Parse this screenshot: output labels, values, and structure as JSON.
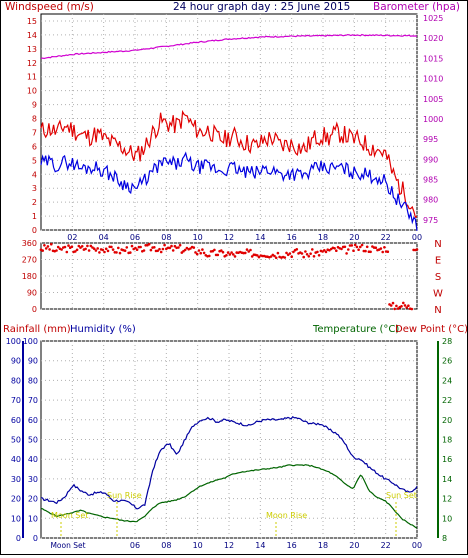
{
  "header": {
    "left_label": "Windspeed (m/s)",
    "title": "24 hour graph day : 25 June 2015",
    "right_label": "Barometer (hpa)"
  },
  "colors": {
    "wind_gust": "#e00000",
    "wind_avg": "#0000e0",
    "barometer": "#d000d0",
    "direction": "#e00000",
    "humidity": "#0000a0",
    "temperature": "#006400",
    "rainfall": "#0000c0",
    "sun": "#cccc00",
    "grid": "#b0b0b0"
  },
  "chart_data": [
    {
      "type": "line",
      "name": "wind_and_barometer",
      "x_ticks": [
        "02",
        "04",
        "06",
        "08",
        "10",
        "12",
        "14",
        "16",
        "18",
        "20",
        "22",
        "00"
      ],
      "left_ticks": [
        "0",
        "1",
        "2",
        "3",
        "4",
        "5",
        "6",
        "7",
        "8",
        "9",
        "10",
        "11",
        "12",
        "13",
        "14",
        "15"
      ],
      "right_ticks": [
        "975",
        "980",
        "985",
        "990",
        "995",
        "1000",
        "1005",
        "1010",
        "1015",
        "1020",
        "1025"
      ],
      "ylim_left": [
        0,
        15.5
      ],
      "ylim_right": [
        972.5,
        1026
      ],
      "series": [
        {
          "key": "gust",
          "values": [
            7.1,
            7.3,
            7.0,
            7.5,
            7.2,
            6.8,
            6.7,
            6.9,
            6.5,
            6.2,
            6.0,
            5.6,
            5.3,
            6.0,
            7.0,
            7.8,
            7.6,
            7.5,
            8.2,
            7.4,
            7.0,
            7.2,
            6.6,
            6.5,
            6.8,
            6.4,
            6.2,
            6.0,
            6.5,
            6.6,
            6.0,
            6.2,
            6.0,
            5.8,
            6.5,
            6.8,
            6.6,
            7.0,
            6.8,
            6.5,
            6.4,
            6.0,
            5.8,
            5.5,
            4.0,
            3.0,
            2.2,
            1.0
          ]
        },
        {
          "key": "avg",
          "values": [
            4.8,
            4.9,
            4.6,
            4.9,
            4.8,
            4.4,
            4.5,
            4.5,
            4.2,
            3.9,
            3.4,
            3.2,
            3.0,
            3.6,
            4.2,
            4.8,
            4.8,
            4.7,
            5.1,
            4.6,
            4.5,
            4.6,
            4.3,
            4.3,
            4.5,
            4.2,
            4.1,
            4.1,
            4.4,
            4.3,
            4.0,
            4.1,
            4.0,
            3.9,
            4.3,
            4.5,
            4.4,
            4.5,
            4.4,
            4.1,
            4.1,
            3.9,
            3.8,
            3.5,
            2.6,
            1.9,
            1.2,
            0.4
          ]
        },
        {
          "key": "barometer",
          "values": [
            1015,
            1016,
            1016.5,
            1017,
            1018,
            1019,
            1019.8,
            1020.3,
            1020.5,
            1020.6,
            1020.8,
            1020.7,
            1020.6
          ]
        }
      ]
    },
    {
      "type": "scatter",
      "name": "wind_direction",
      "left_ticks": [
        "0",
        "90",
        "180",
        "270",
        "360"
      ],
      "right_labels": [
        "N",
        "W",
        "S",
        "E",
        "N"
      ],
      "ylim": [
        0,
        360
      ],
      "series": [
        {
          "key": "direction",
          "values": [
            330,
            335,
            320,
            330,
            325,
            330,
            335,
            328,
            330,
            322,
            318,
            325,
            320,
            330,
            335,
            330,
            328,
            330,
            325,
            322,
            315,
            300,
            305,
            302,
            298,
            300,
            305,
            300,
            302,
            298,
            300,
            305,
            310,
            300,
            305,
            308,
            320,
            325,
            322,
            330,
            335,
            330,
            325,
            330,
            15,
            20,
            10,
            340
          ]
        }
      ]
    },
    {
      "type": "line",
      "name": "rain_humidity_temperature",
      "headers": {
        "rainfall": "Rainfall (mm)",
        "humidity": "Humidity (%)",
        "temperature": "Temperature (°C)",
        "dewpoint": "Dew Point (°C)"
      },
      "left_ticks": [
        "0",
        "10",
        "20",
        "30",
        "40",
        "50",
        "60",
        "70",
        "80",
        "90",
        "100"
      ],
      "right_ticks": [
        "8",
        "10",
        "12",
        "14",
        "16",
        "18",
        "20",
        "22",
        "24",
        "26",
        "28"
      ],
      "ylim_left": [
        0,
        100
      ],
      "ylim_right": [
        8,
        28
      ],
      "series": [
        {
          "key": "humidity",
          "values": [
            20,
            19,
            18,
            21,
            27,
            24,
            22,
            23,
            23,
            19,
            19,
            18,
            15,
            17,
            35,
            45,
            48,
            42,
            50,
            57,
            60,
            61,
            59,
            60,
            59,
            58,
            57,
            59,
            60,
            60,
            60,
            61,
            61,
            59,
            58,
            58,
            55,
            53,
            48,
            41,
            40,
            36,
            33,
            30,
            28,
            25,
            23,
            26
          ]
        },
        {
          "key": "temperature",
          "values": [
            11.0,
            10.6,
            10.2,
            10.4,
            10.6,
            10.8,
            10.5,
            10.3,
            10.1,
            10.0,
            9.8,
            9.7,
            9.7,
            10.2,
            11.1,
            11.6,
            11.7,
            11.9,
            12.2,
            12.8,
            13.3,
            13.6,
            13.9,
            14.1,
            14.5,
            14.7,
            14.8,
            14.9,
            15.0,
            15.1,
            15.2,
            15.4,
            15.4,
            15.4,
            15.3,
            15.0,
            14.7,
            14.2,
            13.5,
            13.0,
            14.5,
            12.8,
            12.1,
            11.8,
            11.0,
            10.0,
            9.5,
            9.0
          ]
        }
      ],
      "annotations": [
        {
          "label": "Moon Set"
        },
        {
          "label": "Sun Rise"
        },
        {
          "label": "Moon Rise"
        },
        {
          "label": "Sun Set"
        }
      ],
      "x_ticks": [
        "Moon Set",
        "06",
        "08",
        "10",
        "12",
        "14",
        "16",
        "18",
        "20",
        "22",
        "00"
      ]
    }
  ]
}
